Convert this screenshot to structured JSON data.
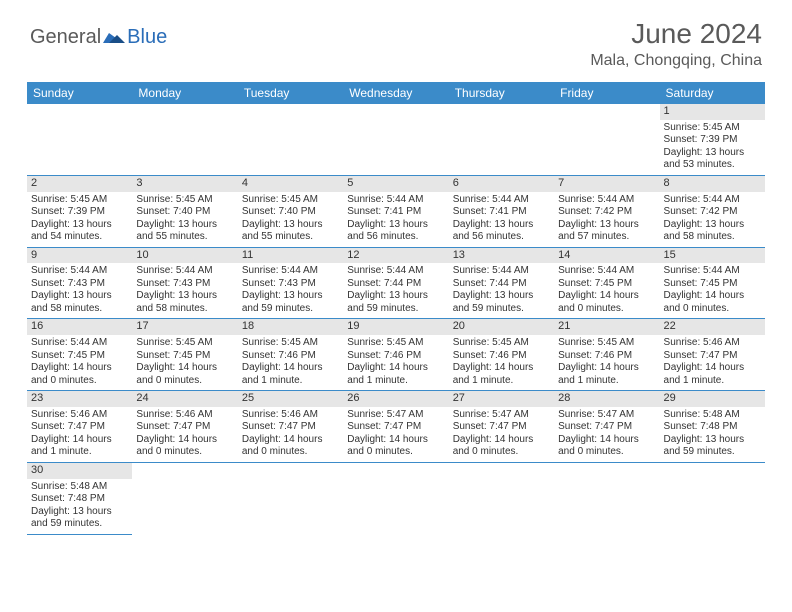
{
  "logo": {
    "word1": "General",
    "word2": "Blue"
  },
  "title": "June 2024",
  "location": "Mala, Chongqing, China",
  "colors": {
    "header_bg": "#3b8bc9",
    "header_text": "#ffffff",
    "daynum_bg": "#e6e6e6",
    "text": "#333333",
    "border": "#3b8bc9"
  },
  "days_of_week": [
    "Sunday",
    "Monday",
    "Tuesday",
    "Wednesday",
    "Thursday",
    "Friday",
    "Saturday"
  ],
  "weeks": [
    [
      null,
      null,
      null,
      null,
      null,
      null,
      {
        "n": "1",
        "sr": "Sunrise: 5:45 AM",
        "ss": "Sunset: 7:39 PM",
        "dl": "Daylight: 13 hours and 53 minutes."
      }
    ],
    [
      {
        "n": "2",
        "sr": "Sunrise: 5:45 AM",
        "ss": "Sunset: 7:39 PM",
        "dl": "Daylight: 13 hours and 54 minutes."
      },
      {
        "n": "3",
        "sr": "Sunrise: 5:45 AM",
        "ss": "Sunset: 7:40 PM",
        "dl": "Daylight: 13 hours and 55 minutes."
      },
      {
        "n": "4",
        "sr": "Sunrise: 5:45 AM",
        "ss": "Sunset: 7:40 PM",
        "dl": "Daylight: 13 hours and 55 minutes."
      },
      {
        "n": "5",
        "sr": "Sunrise: 5:44 AM",
        "ss": "Sunset: 7:41 PM",
        "dl": "Daylight: 13 hours and 56 minutes."
      },
      {
        "n": "6",
        "sr": "Sunrise: 5:44 AM",
        "ss": "Sunset: 7:41 PM",
        "dl": "Daylight: 13 hours and 56 minutes."
      },
      {
        "n": "7",
        "sr": "Sunrise: 5:44 AM",
        "ss": "Sunset: 7:42 PM",
        "dl": "Daylight: 13 hours and 57 minutes."
      },
      {
        "n": "8",
        "sr": "Sunrise: 5:44 AM",
        "ss": "Sunset: 7:42 PM",
        "dl": "Daylight: 13 hours and 58 minutes."
      }
    ],
    [
      {
        "n": "9",
        "sr": "Sunrise: 5:44 AM",
        "ss": "Sunset: 7:43 PM",
        "dl": "Daylight: 13 hours and 58 minutes."
      },
      {
        "n": "10",
        "sr": "Sunrise: 5:44 AM",
        "ss": "Sunset: 7:43 PM",
        "dl": "Daylight: 13 hours and 58 minutes."
      },
      {
        "n": "11",
        "sr": "Sunrise: 5:44 AM",
        "ss": "Sunset: 7:43 PM",
        "dl": "Daylight: 13 hours and 59 minutes."
      },
      {
        "n": "12",
        "sr": "Sunrise: 5:44 AM",
        "ss": "Sunset: 7:44 PM",
        "dl": "Daylight: 13 hours and 59 minutes."
      },
      {
        "n": "13",
        "sr": "Sunrise: 5:44 AM",
        "ss": "Sunset: 7:44 PM",
        "dl": "Daylight: 13 hours and 59 minutes."
      },
      {
        "n": "14",
        "sr": "Sunrise: 5:44 AM",
        "ss": "Sunset: 7:45 PM",
        "dl": "Daylight: 14 hours and 0 minutes."
      },
      {
        "n": "15",
        "sr": "Sunrise: 5:44 AM",
        "ss": "Sunset: 7:45 PM",
        "dl": "Daylight: 14 hours and 0 minutes."
      }
    ],
    [
      {
        "n": "16",
        "sr": "Sunrise: 5:44 AM",
        "ss": "Sunset: 7:45 PM",
        "dl": "Daylight: 14 hours and 0 minutes."
      },
      {
        "n": "17",
        "sr": "Sunrise: 5:45 AM",
        "ss": "Sunset: 7:45 PM",
        "dl": "Daylight: 14 hours and 0 minutes."
      },
      {
        "n": "18",
        "sr": "Sunrise: 5:45 AM",
        "ss": "Sunset: 7:46 PM",
        "dl": "Daylight: 14 hours and 1 minute."
      },
      {
        "n": "19",
        "sr": "Sunrise: 5:45 AM",
        "ss": "Sunset: 7:46 PM",
        "dl": "Daylight: 14 hours and 1 minute."
      },
      {
        "n": "20",
        "sr": "Sunrise: 5:45 AM",
        "ss": "Sunset: 7:46 PM",
        "dl": "Daylight: 14 hours and 1 minute."
      },
      {
        "n": "21",
        "sr": "Sunrise: 5:45 AM",
        "ss": "Sunset: 7:46 PM",
        "dl": "Daylight: 14 hours and 1 minute."
      },
      {
        "n": "22",
        "sr": "Sunrise: 5:46 AM",
        "ss": "Sunset: 7:47 PM",
        "dl": "Daylight: 14 hours and 1 minute."
      }
    ],
    [
      {
        "n": "23",
        "sr": "Sunrise: 5:46 AM",
        "ss": "Sunset: 7:47 PM",
        "dl": "Daylight: 14 hours and 1 minute."
      },
      {
        "n": "24",
        "sr": "Sunrise: 5:46 AM",
        "ss": "Sunset: 7:47 PM",
        "dl": "Daylight: 14 hours and 0 minutes."
      },
      {
        "n": "25",
        "sr": "Sunrise: 5:46 AM",
        "ss": "Sunset: 7:47 PM",
        "dl": "Daylight: 14 hours and 0 minutes."
      },
      {
        "n": "26",
        "sr": "Sunrise: 5:47 AM",
        "ss": "Sunset: 7:47 PM",
        "dl": "Daylight: 14 hours and 0 minutes."
      },
      {
        "n": "27",
        "sr": "Sunrise: 5:47 AM",
        "ss": "Sunset: 7:47 PM",
        "dl": "Daylight: 14 hours and 0 minutes."
      },
      {
        "n": "28",
        "sr": "Sunrise: 5:47 AM",
        "ss": "Sunset: 7:47 PM",
        "dl": "Daylight: 14 hours and 0 minutes."
      },
      {
        "n": "29",
        "sr": "Sunrise: 5:48 AM",
        "ss": "Sunset: 7:48 PM",
        "dl": "Daylight: 13 hours and 59 minutes."
      }
    ],
    [
      {
        "n": "30",
        "sr": "Sunrise: 5:48 AM",
        "ss": "Sunset: 7:48 PM",
        "dl": "Daylight: 13 hours and 59 minutes."
      },
      null,
      null,
      null,
      null,
      null,
      null
    ]
  ]
}
